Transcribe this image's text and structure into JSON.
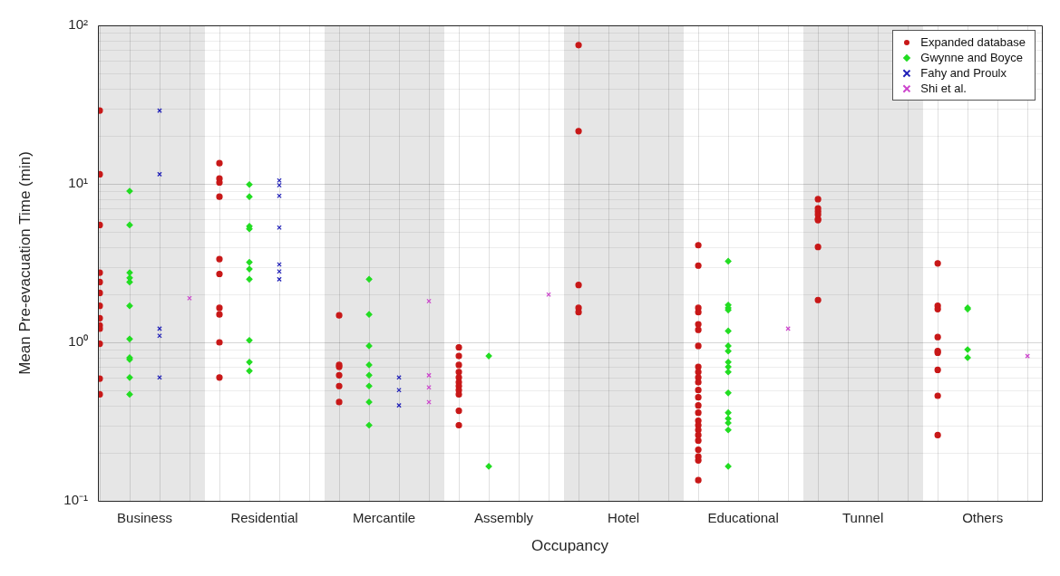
{
  "chart_data": {
    "type": "scatter",
    "xlabel": "Occupancy",
    "ylabel": "Mean Pre-evacuation Time (min)",
    "categories": [
      "Business",
      "Residential",
      "Mercantile",
      "Assembly",
      "Hotel",
      "Educational",
      "Tunnel",
      "Others"
    ],
    "log": "y",
    "ylim": [
      0.1,
      100
    ],
    "yticks": [
      {
        "value": 0.1,
        "label": "10⁻¹"
      },
      {
        "value": 1,
        "label": "10⁰"
      },
      {
        "value": 10,
        "label": "10¹"
      },
      {
        "value": 100,
        "label": "10²"
      }
    ],
    "grid": true,
    "legend": "top right",
    "series": [
      {
        "name": "Expanded database",
        "color": "#c81818",
        "marker": "circle",
        "x": [
          "Business",
          "Business",
          "Business",
          "Business",
          "Business",
          "Business",
          "Business",
          "Business",
          "Business",
          "Business",
          "Business",
          "Business",
          "Business",
          "Residential",
          "Residential",
          "Residential",
          "Residential",
          "Residential",
          "Residential",
          "Residential",
          "Residential",
          "Residential",
          "Residential",
          "Mercantile",
          "Mercantile",
          "Mercantile",
          "Mercantile",
          "Mercantile",
          "Mercantile",
          "Assembly",
          "Assembly",
          "Assembly",
          "Assembly",
          "Assembly",
          "Assembly",
          "Assembly",
          "Assembly",
          "Assembly",
          "Assembly",
          "Assembly",
          "Hotel",
          "Hotel",
          "Hotel",
          "Hotel",
          "Hotel",
          "Educational",
          "Educational",
          "Educational",
          "Educational",
          "Educational",
          "Educational",
          "Educational",
          "Educational",
          "Educational",
          "Educational",
          "Educational",
          "Educational",
          "Educational",
          "Educational",
          "Educational",
          "Educational",
          "Educational",
          "Educational",
          "Educational",
          "Educational",
          "Educational",
          "Educational",
          "Educational",
          "Educational",
          "Tunnel",
          "Tunnel",
          "Tunnel",
          "Tunnel",
          "Tunnel",
          "Tunnel",
          "Tunnel",
          "Tunnel",
          "Others",
          "Others",
          "Others",
          "Others",
          "Others",
          "Others",
          "Others",
          "Others",
          "Others"
        ],
        "values": [
          29,
          11.5,
          5.5,
          2.75,
          2.4,
          2.05,
          1.7,
          1.42,
          1.28,
          1.22,
          0.98,
          0.59,
          0.47,
          13.5,
          10.8,
          10.2,
          8.3,
          3.35,
          2.7,
          1.65,
          1.5,
          1.0,
          0.6,
          1.48,
          0.72,
          0.7,
          0.62,
          0.53,
          0.42,
          0.93,
          0.82,
          0.72,
          0.65,
          0.6,
          0.56,
          0.53,
          0.5,
          0.47,
          0.37,
          0.3,
          75,
          21.5,
          2.3,
          1.65,
          1.55,
          4.1,
          3.05,
          1.65,
          1.55,
          1.3,
          1.2,
          0.95,
          0.7,
          0.65,
          0.6,
          0.56,
          0.5,
          0.45,
          0.4,
          0.36,
          0.32,
          0.3,
          0.28,
          0.26,
          0.24,
          0.21,
          0.19,
          0.18,
          0.135,
          8.0,
          7.0,
          6.7,
          6.4,
          6.0,
          5.9,
          4.0,
          1.85,
          3.15,
          1.7,
          1.62,
          1.08,
          0.88,
          0.86,
          0.67,
          0.46,
          0.26
        ]
      },
      {
        "name": "Gwynne and Boyce",
        "color": "#22dd22",
        "marker": "diamond",
        "x": [
          "Business",
          "Business",
          "Business",
          "Business",
          "Business",
          "Business",
          "Business",
          "Business",
          "Business",
          "Business",
          "Business",
          "Residential",
          "Residential",
          "Residential",
          "Residential",
          "Residential",
          "Residential",
          "Residential",
          "Residential",
          "Residential",
          "Residential",
          "Mercantile",
          "Mercantile",
          "Mercantile",
          "Mercantile",
          "Mercantile",
          "Mercantile",
          "Mercantile",
          "Mercantile",
          "Assembly",
          "Assembly",
          "Educational",
          "Educational",
          "Educational",
          "Educational",
          "Educational",
          "Educational",
          "Educational",
          "Educational",
          "Educational",
          "Educational",
          "Educational",
          "Educational",
          "Educational",
          "Educational",
          "Educational",
          "Educational",
          "Others",
          "Others",
          "Others",
          "Others"
        ],
        "values": [
          9.0,
          5.5,
          2.75,
          2.55,
          2.4,
          1.7,
          1.05,
          0.8,
          0.78,
          0.6,
          0.47,
          9.9,
          8.3,
          5.4,
          5.2,
          3.2,
          2.9,
          2.5,
          1.03,
          0.75,
          0.66,
          2.5,
          1.5,
          0.95,
          0.72,
          0.62,
          0.53,
          0.42,
          0.3,
          0.82,
          0.165,
          3.25,
          1.72,
          1.65,
          1.6,
          1.18,
          0.95,
          0.88,
          0.75,
          0.7,
          0.65,
          0.48,
          0.36,
          0.33,
          0.31,
          0.28,
          0.165,
          1.65,
          1.62,
          0.9,
          0.8
        ]
      },
      {
        "name": "Fahy and Proulx",
        "color": "#2020b8",
        "marker": "cross",
        "x": [
          "Business",
          "Business",
          "Business",
          "Business",
          "Business",
          "Residential",
          "Residential",
          "Residential",
          "Residential",
          "Residential",
          "Residential",
          "Residential",
          "Mercantile",
          "Mercantile",
          "Mercantile"
        ],
        "values": [
          29,
          11.5,
          1.22,
          1.1,
          0.6,
          10.5,
          9.8,
          8.4,
          5.3,
          3.1,
          2.8,
          2.5,
          0.6,
          0.5,
          0.4
        ]
      },
      {
        "name": "Shi et al.",
        "color": "#cc44cc",
        "marker": "cross",
        "x": [
          "Business",
          "Mercantile",
          "Mercantile",
          "Mercantile",
          "Mercantile",
          "Assembly",
          "Educational",
          "Others"
        ],
        "values": [
          1.9,
          1.82,
          0.62,
          0.52,
          0.42,
          2.0,
          1.22,
          0.82
        ]
      }
    ]
  }
}
